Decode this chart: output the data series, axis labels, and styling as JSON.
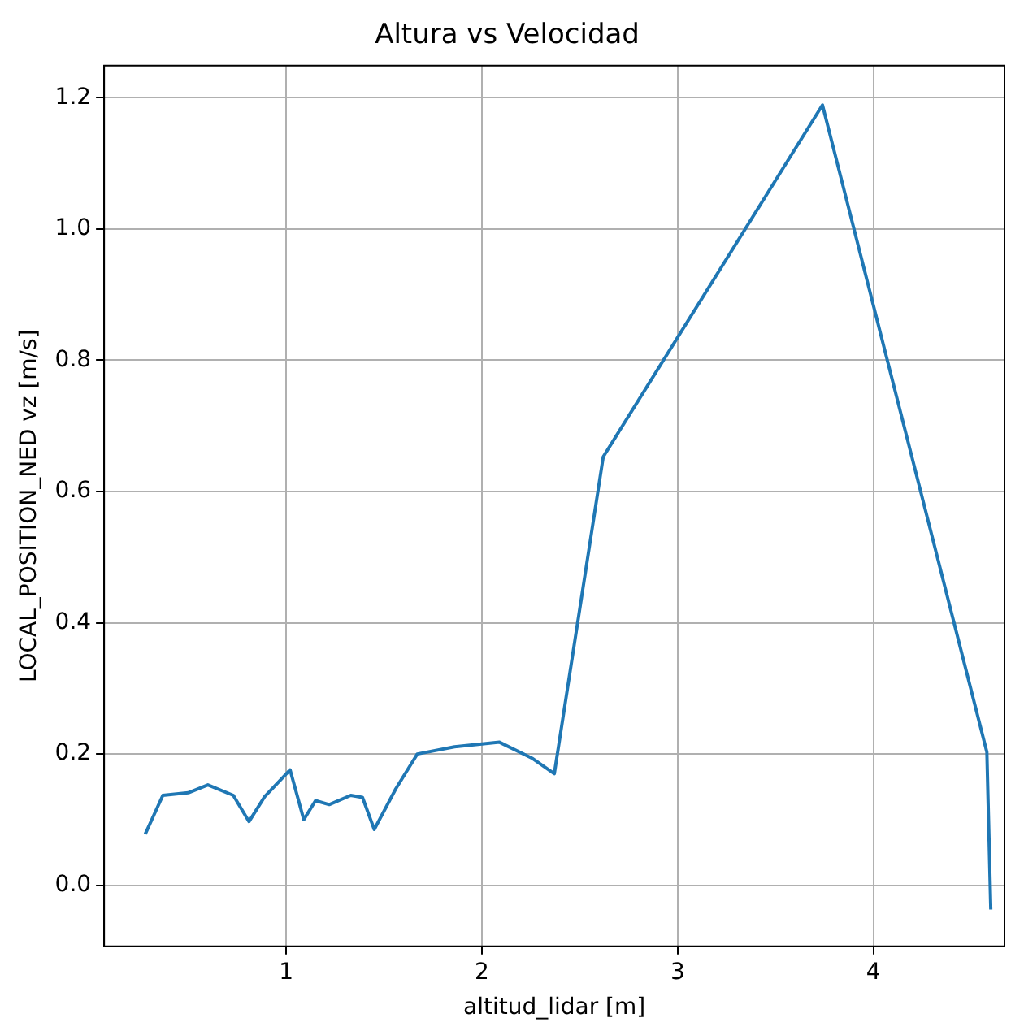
{
  "chart_data": {
    "type": "line",
    "title": "Altura vs Velocidad",
    "xlabel": "altitud_lidar [m]",
    "ylabel": "LOCAL_POSITION_NED vz [m/s]",
    "x": [
      0.28,
      0.37,
      0.5,
      0.6,
      0.73,
      0.81,
      0.89,
      1.02,
      1.09,
      1.15,
      1.22,
      1.33,
      1.39,
      1.45,
      1.56,
      1.67,
      1.86,
      2.09,
      2.26,
      2.37,
      2.62,
      3.74,
      4.58,
      4.6
    ],
    "series": [
      {
        "color": "#1f77b4",
        "values": [
          0.078,
          0.137,
          0.141,
          0.153,
          0.137,
          0.097,
          0.135,
          0.176,
          0.1,
          0.129,
          0.123,
          0.137,
          0.134,
          0.085,
          0.147,
          0.2,
          0.211,
          0.218,
          0.193,
          0.17,
          0.653,
          1.189,
          0.203,
          -0.037
        ]
      }
    ],
    "xlim": [
      0.07,
      4.67
    ],
    "ylim": [
      -0.093,
      1.249
    ],
    "xticks": [
      1,
      2,
      3,
      4
    ],
    "yticks": [
      {
        "value": 0,
        "label": "0.0"
      },
      {
        "value": 0.2,
        "label": "0.2"
      },
      {
        "value": 0.4,
        "label": "0.4"
      },
      {
        "value": 0.6,
        "label": "0.6"
      },
      {
        "value": 0.8,
        "label": "0.8"
      },
      {
        "value": 1,
        "label": "1.0"
      },
      {
        "value": 1.2,
        "label": "1.2"
      }
    ],
    "grid": true,
    "legend": false,
    "marker": "none",
    "line_style": "solid"
  }
}
